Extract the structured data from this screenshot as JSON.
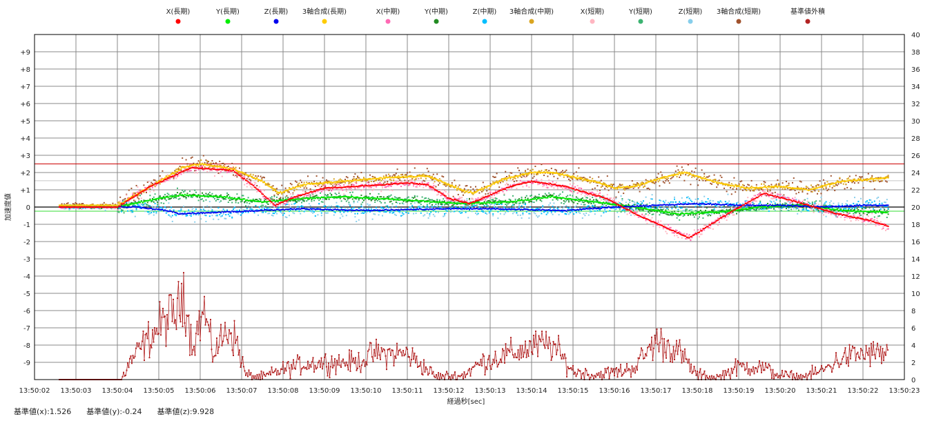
{
  "chart_data": {
    "type": "scatter",
    "xlabel": "経過秒[sec]",
    "ylabel": "加速度値",
    "xlim_seconds": [
      2,
      23
    ],
    "ylim": [
      -10,
      10
    ],
    "y2lim": [
      0,
      40
    ],
    "x_tick_labels": [
      "13:50:02",
      "13:50:03",
      "13:50:04",
      "13:50:05",
      "13:50:06",
      "13:50:07",
      "13:50:08",
      "13:50:09",
      "13:50:10",
      "13:50:11",
      "13:50:12",
      "13:50:13",
      "13:50:14",
      "13:50:15",
      "13:50:16",
      "13:50:17",
      "13:50:18",
      "13:50:19",
      "13:50:20",
      "13:50:21",
      "13:50:22",
      "13:50:23"
    ],
    "y_tick_labels": [
      "+9",
      "+8",
      "+7",
      "+6",
      "+5",
      "+4",
      "+3",
      "+2",
      "+1",
      "0",
      "-1",
      "-2",
      "-3",
      "-4",
      "-5",
      "-6",
      "-7",
      "-8",
      "-9"
    ],
    "y_tick_values": [
      9,
      8,
      7,
      6,
      5,
      4,
      3,
      2,
      1,
      0,
      -1,
      -2,
      -3,
      -4,
      -5,
      -6,
      -7,
      -8,
      -9
    ],
    "y2_tick_labels": [
      "40",
      "38",
      "36",
      "34",
      "32",
      "30",
      "28",
      "26",
      "24",
      "22",
      "20",
      "18",
      "16",
      "14",
      "12",
      "10",
      "8",
      "6",
      "4",
      "2",
      "0"
    ],
    "grid": true,
    "legend_position": "top",
    "reference_lines": [
      {
        "name": "threshold",
        "value": 2.5,
        "color": "#cc0000"
      },
      {
        "name": "baseline-x",
        "value": 1.526,
        "color": "#c8c8c8"
      },
      {
        "name": "baseline-y",
        "value": -0.24,
        "color": "#33dd33"
      },
      {
        "name": "zero",
        "value": 0,
        "color": "#000000"
      }
    ],
    "base_series": {
      "x": [
        [
          2.6,
          0
        ],
        [
          4,
          0
        ],
        [
          4.8,
          1.2
        ],
        [
          5.8,
          2.3
        ],
        [
          6.8,
          2.1
        ],
        [
          7.3,
          1.2
        ],
        [
          7.8,
          0.1
        ],
        [
          8.3,
          0.6
        ],
        [
          9,
          1.1
        ],
        [
          10.5,
          1.3
        ],
        [
          11,
          1.4
        ],
        [
          11.5,
          1.3
        ],
        [
          12,
          0.5
        ],
        [
          12.5,
          0.2
        ],
        [
          13.5,
          1.2
        ],
        [
          14,
          1.5
        ],
        [
          14.8,
          1.2
        ],
        [
          15.8,
          0.5
        ],
        [
          16.6,
          -0.5
        ],
        [
          17.8,
          -1.8
        ],
        [
          18.6,
          -0.6
        ],
        [
          19.6,
          0.8
        ],
        [
          20.4,
          0.3
        ],
        [
          21.4,
          -0.4
        ],
        [
          22.2,
          -0.8
        ],
        [
          22.6,
          -1.1
        ]
      ],
      "y": [
        [
          2.6,
          0
        ],
        [
          4,
          0
        ],
        [
          5,
          0.5
        ],
        [
          5.6,
          0.7
        ],
        [
          6.5,
          0.6
        ],
        [
          7.5,
          0.3
        ],
        [
          8.5,
          0.5
        ],
        [
          9.5,
          0.6
        ],
        [
          11,
          0.4
        ],
        [
          12.3,
          0.2
        ],
        [
          13.5,
          0.3
        ],
        [
          14.5,
          0.6
        ],
        [
          15.5,
          0.3
        ],
        [
          16.5,
          0
        ],
        [
          17.5,
          -0.4
        ],
        [
          18.5,
          -0.3
        ],
        [
          19.5,
          0
        ],
        [
          20.5,
          0.1
        ],
        [
          21.5,
          -0.2
        ],
        [
          22.6,
          -0.3
        ]
      ],
      "z": [
        [
          2.6,
          0
        ],
        [
          4.5,
          0
        ],
        [
          5.2,
          -0.2
        ],
        [
          5.5,
          -0.4
        ],
        [
          6.5,
          -0.3
        ],
        [
          7.5,
          -0.2
        ],
        [
          8.5,
          -0.1
        ],
        [
          10,
          -0.2
        ],
        [
          12,
          -0.1
        ],
        [
          13,
          -0.1
        ],
        [
          14.8,
          -0.2
        ],
        [
          16,
          0
        ],
        [
          17,
          0.1
        ],
        [
          18,
          0.2
        ],
        [
          19,
          0.1
        ],
        [
          20,
          0.1
        ],
        [
          21,
          0
        ],
        [
          22,
          0.1
        ],
        [
          22.6,
          0.1
        ]
      ],
      "r": [
        [
          2.6,
          0.1
        ],
        [
          4,
          0.1
        ],
        [
          4.8,
          1.2
        ],
        [
          5.6,
          2.3
        ],
        [
          6,
          2.5
        ],
        [
          6.8,
          2.2
        ],
        [
          7.5,
          1.5
        ],
        [
          7.9,
          0.8
        ],
        [
          8.5,
          1.3
        ],
        [
          9.5,
          1.5
        ],
        [
          10.5,
          1.7
        ],
        [
          11.5,
          1.8
        ],
        [
          12.3,
          1.0
        ],
        [
          12.6,
          0.8
        ],
        [
          13.3,
          1.6
        ],
        [
          14,
          2.0
        ],
        [
          14.5,
          2.0
        ],
        [
          15.5,
          1.5
        ],
        [
          16,
          1.1
        ],
        [
          16.5,
          1.2
        ],
        [
          17.3,
          1.8
        ],
        [
          17.7,
          2.0
        ],
        [
          18.5,
          1.4
        ],
        [
          19.2,
          1.1
        ],
        [
          20,
          1.2
        ],
        [
          20.7,
          1.0
        ],
        [
          21.5,
          1.5
        ],
        [
          22.2,
          1.6
        ],
        [
          22.6,
          1.7
        ]
      ],
      "ex": [
        [
          2.6,
          0
        ],
        [
          4.1,
          0
        ],
        [
          4.3,
          2
        ],
        [
          4.8,
          5
        ],
        [
          5.2,
          7
        ],
        [
          5.5,
          8
        ],
        [
          5.6,
          11
        ],
        [
          5.8,
          4
        ],
        [
          6.1,
          8
        ],
        [
          6.3,
          3
        ],
        [
          6.7,
          6
        ],
        [
          6.9,
          4
        ],
        [
          7.1,
          0.5
        ],
        [
          7.5,
          0.2
        ],
        [
          7.9,
          1
        ],
        [
          8.5,
          1.8
        ],
        [
          9,
          2
        ],
        [
          9.8,
          2
        ],
        [
          10.2,
          3
        ],
        [
          11,
          3
        ],
        [
          11.7,
          0.3
        ],
        [
          12.3,
          0.4
        ],
        [
          12.8,
          2
        ],
        [
          13.5,
          3
        ],
        [
          14.2,
          4
        ],
        [
          14.5,
          4
        ],
        [
          15,
          1
        ],
        [
          15.5,
          0.5
        ],
        [
          16.2,
          1
        ],
        [
          16.5,
          1.5
        ],
        [
          17,
          4.5
        ],
        [
          17.5,
          3.5
        ],
        [
          18,
          0.5
        ],
        [
          18.5,
          0.2
        ],
        [
          19,
          1.5
        ],
        [
          19.5,
          1.5
        ],
        [
          20,
          0.5
        ],
        [
          20.5,
          0.2
        ],
        [
          21,
          1
        ],
        [
          21.5,
          2.5
        ],
        [
          22,
          3
        ],
        [
          22.6,
          3
        ]
      ]
    },
    "series": [
      {
        "name": "X(長期)",
        "color": "#ff0000",
        "base": "x",
        "noise": 0.03,
        "axis": "left"
      },
      {
        "name": "Y(長期)",
        "color": "#00ee00",
        "base": "y",
        "noise": 0.03,
        "axis": "left"
      },
      {
        "name": "Z(長期)",
        "color": "#0000ee",
        "base": "z",
        "noise": 0.03,
        "axis": "left"
      },
      {
        "name": "3軸合成(長期)",
        "color": "#ffcc00",
        "base": "r",
        "noise": 0.03,
        "axis": "left"
      },
      {
        "name": "X(中期)",
        "color": "#ff69b4",
        "base": "x",
        "noise": 0.15,
        "axis": "left"
      },
      {
        "name": "Y(中期)",
        "color": "#228b22",
        "base": "y",
        "noise": 0.15,
        "axis": "left"
      },
      {
        "name": "Z(中期)",
        "color": "#00bfff",
        "base": "z",
        "noise": 0.25,
        "axis": "left"
      },
      {
        "name": "3軸合成(中期)",
        "color": "#daa520",
        "base": "r",
        "noise": 0.15,
        "axis": "left"
      },
      {
        "name": "X(短期)",
        "color": "#ffb6c1",
        "base": "x",
        "noise": 0.3,
        "axis": "left"
      },
      {
        "name": "Y(短期)",
        "color": "#3cb371",
        "base": "y",
        "noise": 0.3,
        "axis": "left"
      },
      {
        "name": "Z(短期)",
        "color": "#87ceeb",
        "base": "z",
        "noise": 0.45,
        "axis": "left"
      },
      {
        "name": "3軸合成(短期)",
        "color": "#a0522d",
        "base": "r",
        "noise": 0.4,
        "axis": "left"
      },
      {
        "name": "基準値外積",
        "color": "#b22222",
        "base": "ex",
        "noise": 1.2,
        "axis": "right"
      }
    ]
  },
  "footer": {
    "base_x": "基準値(x):1.526",
    "base_y": "基準値(y):-0.24",
    "base_z": "基準値(z):9.928"
  }
}
